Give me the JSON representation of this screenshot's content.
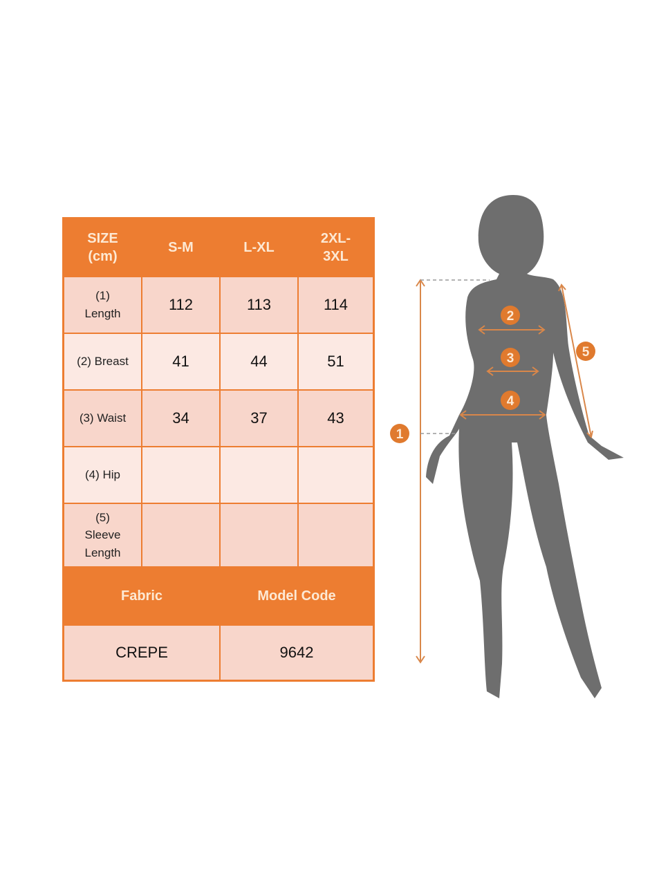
{
  "table": {
    "header": [
      "SIZE\n(cm)",
      "S-M",
      "L-XL",
      "2XL-\n3XL"
    ],
    "rows": [
      {
        "label": "(1)\nLength",
        "values": [
          "112",
          "113",
          "114"
        ]
      },
      {
        "label": "(2) Breast",
        "values": [
          "41",
          "44",
          "51"
        ]
      },
      {
        "label": "(3) Waist",
        "values": [
          "34",
          "37",
          "43"
        ]
      },
      {
        "label": "(4) Hip",
        "values": [
          "",
          "",
          ""
        ]
      },
      {
        "label": "(5)\nSleeve\nLength",
        "values": [
          "",
          "",
          ""
        ]
      }
    ],
    "footer_header": [
      "Fabric",
      "Model Code"
    ],
    "footer_values": [
      "CREPE",
      "9642"
    ]
  },
  "figure": {
    "markers": [
      "1",
      "2",
      "3",
      "4",
      "5"
    ]
  },
  "colors": {
    "accent": "#ed7d31",
    "row_dark": "#f8d6cb",
    "row_light": "#fce9e3",
    "silhouette": "#6e6e6e"
  }
}
